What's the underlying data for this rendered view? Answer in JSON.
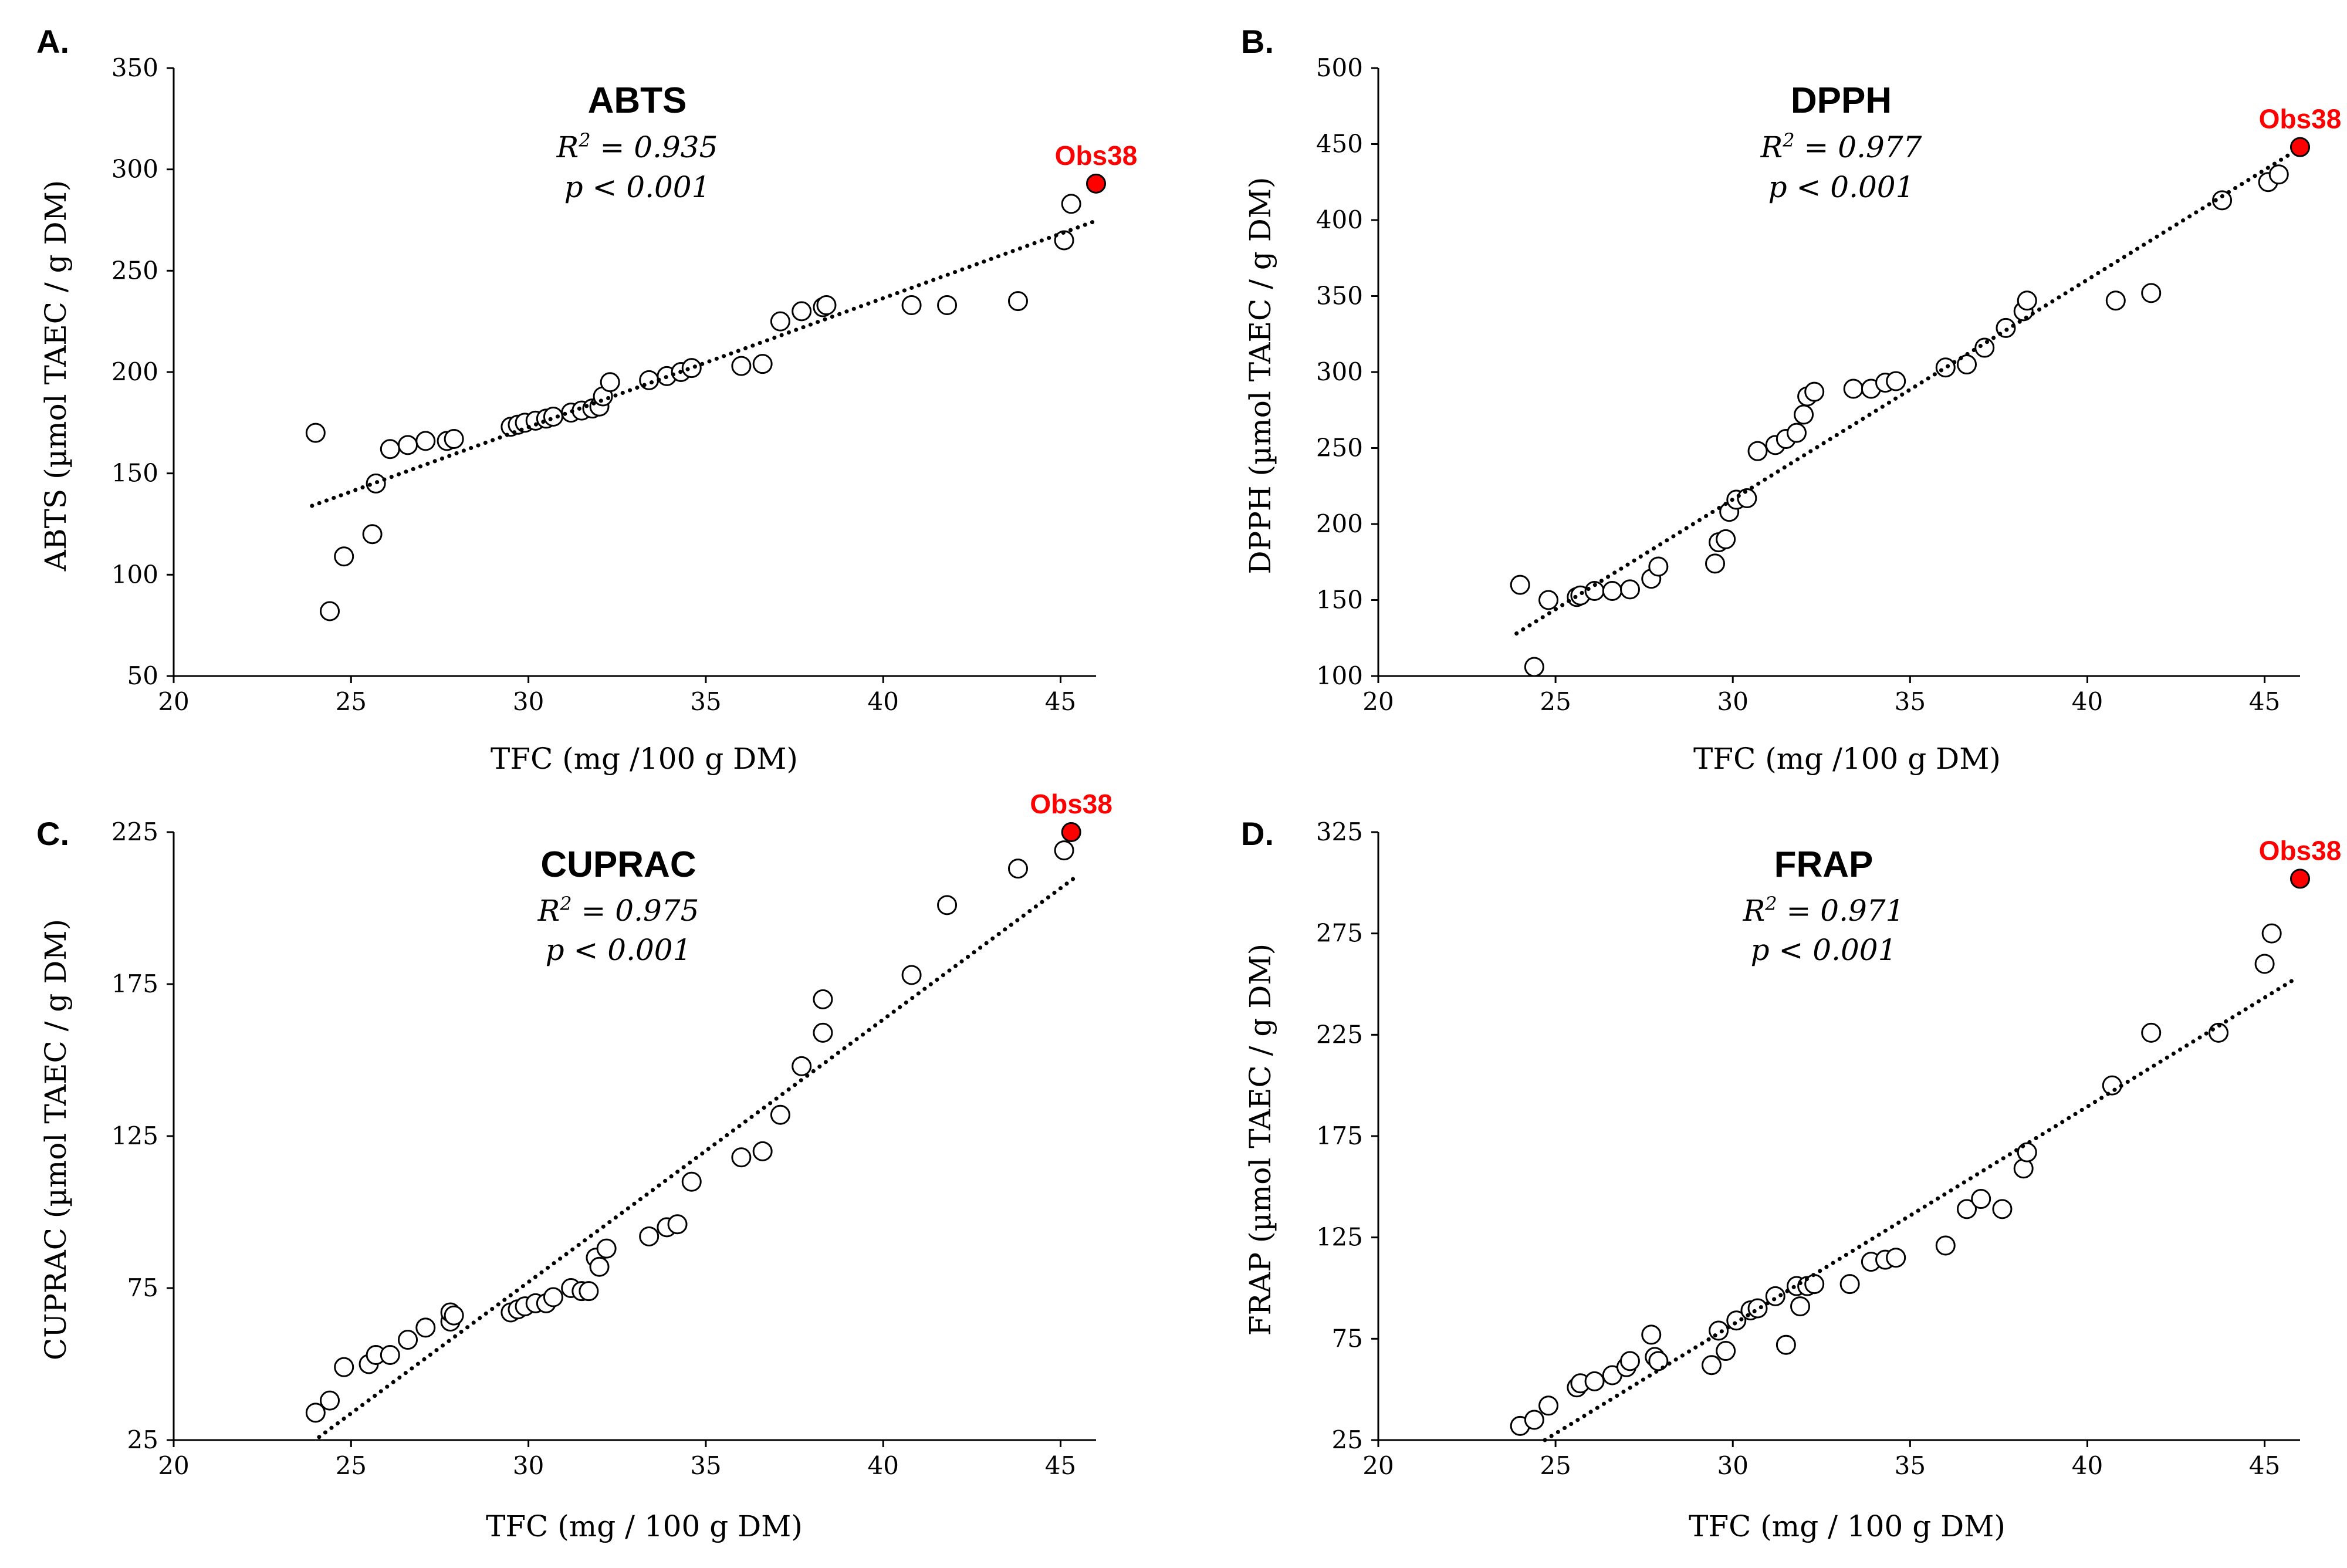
{
  "figure": {
    "marker_color": "#ffffff",
    "marker_stroke": "#000000",
    "outlier_color": "#ff0000",
    "trend_color": "#000000"
  },
  "chart_data": [
    {
      "panel": "A.",
      "type": "scatter",
      "title": "ABTS",
      "r2_label": "R",
      "r2_sup": "2",
      "r2_value": " = 0.935",
      "p_label": "p < 0.001",
      "xlabel": "TFC (mg /100 g DM)",
      "ylabel": "ABTS (µmol TAEC / g DM)",
      "xlim": [
        20,
        46
      ],
      "ylim": [
        50,
        350
      ],
      "xticks": [
        20,
        25,
        30,
        35,
        40,
        45
      ],
      "yticks": [
        50,
        100,
        150,
        200,
        250,
        300,
        350
      ],
      "trendline": {
        "x": [
          23.9,
          45.9
        ],
        "y": [
          134,
          274
        ]
      },
      "outlier": {
        "label": "Obs38",
        "x": 46.0,
        "y": 293
      },
      "points": [
        [
          24.0,
          170
        ],
        [
          24.4,
          82
        ],
        [
          24.8,
          109
        ],
        [
          25.6,
          120
        ],
        [
          25.7,
          145
        ],
        [
          26.1,
          162
        ],
        [
          26.6,
          164
        ],
        [
          27.1,
          166
        ],
        [
          27.7,
          166
        ],
        [
          27.9,
          167
        ],
        [
          29.5,
          173
        ],
        [
          29.7,
          174
        ],
        [
          29.9,
          175
        ],
        [
          30.2,
          176
        ],
        [
          30.5,
          177
        ],
        [
          30.7,
          178
        ],
        [
          31.2,
          180
        ],
        [
          31.5,
          181
        ],
        [
          31.8,
          182
        ],
        [
          32.0,
          183
        ],
        [
          32.1,
          188
        ],
        [
          32.3,
          195
        ],
        [
          33.4,
          196
        ],
        [
          33.9,
          198
        ],
        [
          34.3,
          200
        ],
        [
          34.6,
          202
        ],
        [
          36.0,
          203
        ],
        [
          36.6,
          204
        ],
        [
          37.1,
          225
        ],
        [
          37.7,
          230
        ],
        [
          38.3,
          232
        ],
        [
          38.4,
          233
        ],
        [
          40.8,
          233
        ],
        [
          41.8,
          233
        ],
        [
          43.8,
          235
        ],
        [
          45.1,
          265
        ],
        [
          45.3,
          283
        ]
      ]
    },
    {
      "panel": "B.",
      "type": "scatter",
      "title": "DPPH",
      "r2_label": "R",
      "r2_sup": "2",
      "r2_value": " = 0.977",
      "p_label": "p < 0.001",
      "xlabel": "TFC (mg /100 g DM)",
      "ylabel": "DPPH (µmol TAEC / g DM)",
      "xlim": [
        20,
        46
      ],
      "ylim": [
        100,
        500
      ],
      "xticks": [
        20,
        25,
        30,
        35,
        40,
        45
      ],
      "yticks": [
        100,
        150,
        200,
        250,
        300,
        350,
        400,
        450,
        500
      ],
      "trendline": {
        "x": [
          23.9,
          45.9
        ],
        "y": [
          128,
          446
        ]
      },
      "outlier": {
        "label": "Obs38",
        "x": 46.0,
        "y": 448
      },
      "points": [
        [
          24.0,
          160
        ],
        [
          24.4,
          106
        ],
        [
          24.8,
          150
        ],
        [
          25.6,
          152
        ],
        [
          25.7,
          153
        ],
        [
          26.1,
          156
        ],
        [
          26.6,
          156
        ],
        [
          27.1,
          157
        ],
        [
          27.7,
          164
        ],
        [
          27.9,
          172
        ],
        [
          29.5,
          174
        ],
        [
          29.6,
          188
        ],
        [
          29.8,
          190
        ],
        [
          29.9,
          208
        ],
        [
          30.1,
          216
        ],
        [
          30.4,
          217
        ],
        [
          30.7,
          248
        ],
        [
          31.2,
          252
        ],
        [
          31.5,
          256
        ],
        [
          31.8,
          260
        ],
        [
          32.0,
          272
        ],
        [
          32.1,
          284
        ],
        [
          32.3,
          287
        ],
        [
          33.4,
          289
        ],
        [
          33.9,
          289
        ],
        [
          34.3,
          293
        ],
        [
          34.6,
          294
        ],
        [
          36.0,
          303
        ],
        [
          36.6,
          305
        ],
        [
          37.1,
          316
        ],
        [
          37.7,
          329
        ],
        [
          38.2,
          340
        ],
        [
          38.3,
          347
        ],
        [
          40.8,
          347
        ],
        [
          41.8,
          352
        ],
        [
          43.8,
          413
        ],
        [
          45.1,
          425
        ],
        [
          45.4,
          430
        ]
      ]
    },
    {
      "panel": "C.",
      "type": "scatter",
      "title": "CUPRAC",
      "r2_label": "R",
      "r2_sup": "2",
      "r2_value": " = 0.975",
      "p_label": "p < 0.001",
      "xlabel": "TFC (mg / 100 g DM)",
      "ylabel": "CUPRAC (µmol TAEC / g DM)",
      "xlim": [
        20,
        46
      ],
      "ylim": [
        25,
        225
      ],
      "xticks": [
        20,
        25,
        30,
        35,
        40,
        45
      ],
      "yticks": [
        25,
        75,
        125,
        175,
        225
      ],
      "trendline": {
        "x": [
          24.1,
          45.4
        ],
        "y": [
          26,
          210
        ]
      },
      "outlier": {
        "label": "Obs38",
        "x": 45.3,
        "y": 225
      },
      "points": [
        [
          24.0,
          34
        ],
        [
          24.4,
          38
        ],
        [
          24.8,
          49
        ],
        [
          25.5,
          50
        ],
        [
          25.7,
          53
        ],
        [
          26.1,
          53
        ],
        [
          26.6,
          58
        ],
        [
          27.1,
          62
        ],
        [
          27.8,
          64
        ],
        [
          27.8,
          67
        ],
        [
          27.9,
          66
        ],
        [
          29.5,
          67
        ],
        [
          29.7,
          68
        ],
        [
          29.9,
          69
        ],
        [
          30.2,
          70
        ],
        [
          30.5,
          70
        ],
        [
          30.7,
          72
        ],
        [
          31.2,
          75
        ],
        [
          31.5,
          74
        ],
        [
          31.7,
          74
        ],
        [
          31.9,
          85
        ],
        [
          32.0,
          82
        ],
        [
          32.2,
          88
        ],
        [
          33.4,
          92
        ],
        [
          33.9,
          95
        ],
        [
          34.2,
          96
        ],
        [
          34.6,
          110
        ],
        [
          36.0,
          118
        ],
        [
          36.6,
          120
        ],
        [
          37.1,
          132
        ],
        [
          37.7,
          148
        ],
        [
          38.3,
          159
        ],
        [
          38.3,
          170
        ],
        [
          40.8,
          178
        ],
        [
          41.8,
          201
        ],
        [
          43.8,
          213
        ],
        [
          45.1,
          219
        ]
      ]
    },
    {
      "panel": "D.",
      "type": "scatter",
      "title": "FRAP",
      "r2_label": "R",
      "r2_sup": "2",
      "r2_value": " = 0.971",
      "p_label": "p < 0.001",
      "xlabel": "TFC (mg / 100 g DM)",
      "ylabel": "FRAP (µmol TAEC / g DM)",
      "xlim": [
        20,
        46
      ],
      "ylim": [
        25,
        325
      ],
      "xticks": [
        20,
        25,
        30,
        35,
        40,
        45
      ],
      "yticks": [
        25,
        75,
        125,
        175,
        225,
        275,
        325
      ],
      "trendline": {
        "x": [
          24.7,
          45.9
        ],
        "y": [
          25,
          253
        ]
      },
      "outlier": {
        "label": "Obs38",
        "x": 46.0,
        "y": 302
      },
      "points": [
        [
          24.0,
          32
        ],
        [
          24.4,
          35
        ],
        [
          24.8,
          42
        ],
        [
          25.6,
          51
        ],
        [
          25.7,
          53
        ],
        [
          26.1,
          54
        ],
        [
          26.6,
          57
        ],
        [
          27.0,
          61
        ],
        [
          27.1,
          64
        ],
        [
          27.7,
          77
        ],
        [
          27.8,
          66
        ],
        [
          27.9,
          64
        ],
        [
          29.4,
          62
        ],
        [
          29.6,
          79
        ],
        [
          29.8,
          69
        ],
        [
          30.1,
          84
        ],
        [
          30.5,
          89
        ],
        [
          30.7,
          90
        ],
        [
          31.2,
          96
        ],
        [
          31.5,
          72
        ],
        [
          31.8,
          101
        ],
        [
          31.9,
          91
        ],
        [
          32.1,
          101
        ],
        [
          32.3,
          102
        ],
        [
          33.3,
          102
        ],
        [
          33.9,
          113
        ],
        [
          34.3,
          114
        ],
        [
          34.6,
          115
        ],
        [
          36.0,
          121
        ],
        [
          36.6,
          139
        ],
        [
          37.0,
          144
        ],
        [
          37.6,
          139
        ],
        [
          38.2,
          159
        ],
        [
          38.3,
          167
        ],
        [
          40.7,
          200
        ],
        [
          41.8,
          226
        ],
        [
          43.7,
          226
        ],
        [
          45.0,
          260
        ],
        [
          45.2,
          275
        ]
      ]
    }
  ]
}
